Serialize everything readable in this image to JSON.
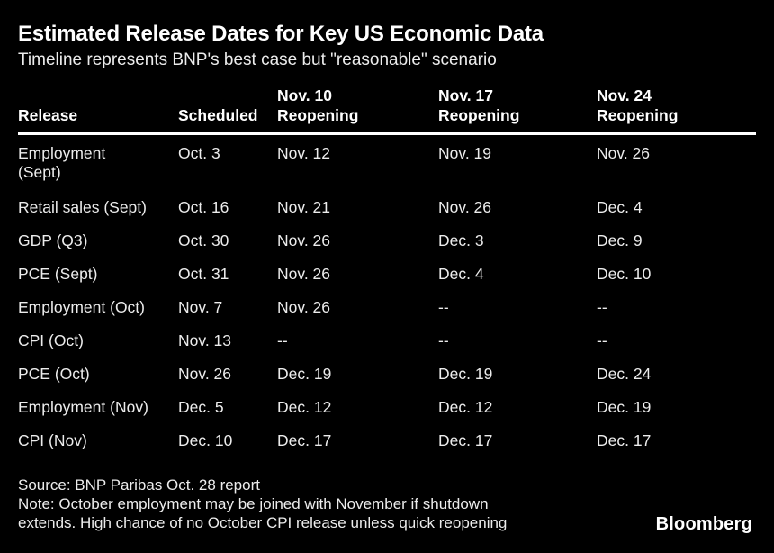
{
  "chart_data": {
    "type": "table",
    "title": "Estimated Release Dates for Key US Economic Data",
    "subtitle": "Timeline represents BNP's best case but \"reasonable\" scenario",
    "columns": [
      "Release",
      "Scheduled",
      "Nov. 10 Reopening",
      "Nov. 17 Reopening",
      "Nov. 24 Reopening"
    ],
    "rows": [
      [
        "Employment (Sept)",
        "Oct. 3",
        "Nov. 12",
        "Nov. 19",
        "Nov. 26"
      ],
      [
        "Retail sales (Sept)",
        "Oct. 16",
        "Nov. 21",
        "Nov. 26",
        "Dec. 4"
      ],
      [
        "GDP (Q3)",
        "Oct. 30",
        "Nov. 26",
        "Dec. 3",
        "Dec. 9"
      ],
      [
        "PCE (Sept)",
        "Oct. 31",
        "Nov. 26",
        "Dec. 4",
        "Dec. 10"
      ],
      [
        "Employment (Oct)",
        "Nov. 7",
        "Nov. 26",
        "--",
        "--"
      ],
      [
        "CPI (Oct)",
        "Nov. 13",
        "--",
        "--",
        "--"
      ],
      [
        "PCE (Oct)",
        "Nov. 26",
        "Dec. 19",
        "Dec. 19",
        "Dec. 24"
      ],
      [
        "Employment (Nov)",
        "Dec. 5",
        "Dec. 12",
        "Dec. 12",
        "Dec. 19"
      ],
      [
        "CPI (Nov)",
        "Dec. 10",
        "Dec. 17",
        "Dec. 17",
        "Dec. 17"
      ]
    ],
    "source": "BNP Paribas Oct. 28 report",
    "layout": {
      "background": "#000000",
      "text_color": "#ffffff",
      "header_rule": true,
      "gridlines": false
    }
  },
  "footer": {
    "source_line": "Source: BNP Paribas Oct. 28 report",
    "note_line": "Note: October employment may be joined with November if shutdown\nextends. High chance of no October CPI release unless quick reopening",
    "brand": "Bloomberg"
  }
}
